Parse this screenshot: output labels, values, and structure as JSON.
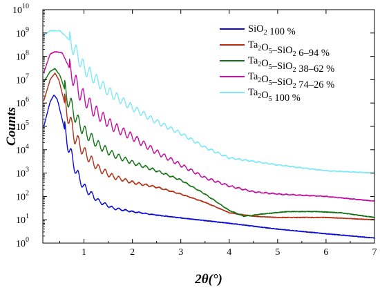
{
  "chart_data": {
    "type": "line",
    "xlabel": "2θ(°)",
    "ylabel": "Counts",
    "xlim": [
      0.15,
      7
    ],
    "ylim_log10": [
      0,
      10
    ],
    "y_scale": "log",
    "x_ticks": [
      "1",
      "2",
      "3",
      "4",
      "5",
      "6",
      "7"
    ],
    "y_ticks": [
      {
        "base": "10",
        "exp": "0"
      },
      {
        "base": "10",
        "exp": "1"
      },
      {
        "base": "10",
        "exp": "2"
      },
      {
        "base": "10",
        "exp": "3"
      },
      {
        "base": "10",
        "exp": "4"
      },
      {
        "base": "10",
        "exp": "5"
      },
      {
        "base": "10",
        "exp": "6"
      },
      {
        "base": "10",
        "exp": "7"
      },
      {
        "base": "10",
        "exp": "8"
      },
      {
        "base": "10",
        "exp": "9"
      },
      {
        "base": "10",
        "exp": "10"
      }
    ],
    "legend_position": "top-right",
    "series": [
      {
        "name": "SiO2 100 %",
        "label_parts": [
          {
            "t": "SiO"
          },
          {
            "sub": "2"
          },
          {
            "t": " 100 %"
          }
        ],
        "color": "#0a0ad6",
        "fringe_period": 0.14,
        "fringe_amp": 0.35,
        "fringe_decay": 2.0,
        "fringe_start": 0.6,
        "points": [
          [
            0.17,
            5.0
          ],
          [
            0.3,
            6.05
          ],
          [
            0.38,
            6.35
          ],
          [
            0.45,
            6.15
          ],
          [
            0.55,
            5.3
          ],
          [
            0.7,
            4.0
          ],
          [
            0.85,
            3.0
          ],
          [
            1.0,
            2.4
          ],
          [
            1.3,
            1.8
          ],
          [
            1.6,
            1.5
          ],
          [
            2.0,
            1.35
          ],
          [
            2.5,
            1.2
          ],
          [
            3.0,
            1.08
          ],
          [
            4.0,
            0.85
          ],
          [
            5.0,
            0.6
          ],
          [
            6.0,
            0.4
          ],
          [
            7.0,
            0.22
          ]
        ]
      },
      {
        "name": "Ta2O5–SiO2 6–94 %",
        "label_parts": [
          {
            "t": "Ta"
          },
          {
            "sub": "2"
          },
          {
            "t": "O"
          },
          {
            "sub": "5"
          },
          {
            "t": "–SiO"
          },
          {
            "sub": "2"
          },
          {
            "t": " 6–94 %"
          }
        ],
        "color": "#b32d12",
        "fringe_period": 0.14,
        "fringe_amp": 0.4,
        "fringe_decay": 1.4,
        "fringe_start": 0.6,
        "points": [
          [
            0.17,
            6.1
          ],
          [
            0.3,
            7.0
          ],
          [
            0.4,
            7.28
          ],
          [
            0.48,
            7.0
          ],
          [
            0.6,
            6.0
          ],
          [
            0.8,
            4.6
          ],
          [
            1.0,
            3.9
          ],
          [
            1.3,
            3.2
          ],
          [
            1.6,
            2.85
          ],
          [
            2.0,
            2.6
          ],
          [
            2.5,
            2.4
          ],
          [
            3.0,
            2.1
          ],
          [
            3.5,
            1.75
          ],
          [
            4.0,
            1.3
          ],
          [
            4.5,
            1.15
          ],
          [
            5.0,
            1.1
          ],
          [
            6.0,
            1.1
          ],
          [
            7.0,
            1.0
          ]
        ]
      },
      {
        "name": "Ta2O5–SiO2 38–62 %",
        "label_parts": [
          {
            "t": "Ta"
          },
          {
            "sub": "2"
          },
          {
            "t": "O"
          },
          {
            "sub": "5"
          },
          {
            "t": "–SiO"
          },
          {
            "sub": "2"
          },
          {
            "t": " 38–62 %"
          }
        ],
        "color": "#127312",
        "fringe_period": 0.14,
        "fringe_amp": 0.38,
        "fringe_decay": 1.1,
        "fringe_start": 0.6,
        "points": [
          [
            0.17,
            6.9
          ],
          [
            0.3,
            7.35
          ],
          [
            0.4,
            7.48
          ],
          [
            0.5,
            7.2
          ],
          [
            0.65,
            6.3
          ],
          [
            0.85,
            5.3
          ],
          [
            1.0,
            4.8
          ],
          [
            1.3,
            4.2
          ],
          [
            1.6,
            3.8
          ],
          [
            2.0,
            3.45
          ],
          [
            2.5,
            3.1
          ],
          [
            3.0,
            2.7
          ],
          [
            3.5,
            2.1
          ],
          [
            4.0,
            1.4
          ],
          [
            4.3,
            1.15
          ],
          [
            4.7,
            1.25
          ],
          [
            5.2,
            1.35
          ],
          [
            5.8,
            1.35
          ],
          [
            6.3,
            1.3
          ],
          [
            7.0,
            1.1
          ]
        ]
      },
      {
        "name": "Ta2O5–SiO2 74–26 %",
        "label_parts": [
          {
            "t": "Ta"
          },
          {
            "sub": "2"
          },
          {
            "t": "O"
          },
          {
            "sub": "5"
          },
          {
            "t": "–SiO"
          },
          {
            "sub": "2"
          },
          {
            "t": " 74–26 %"
          }
        ],
        "color": "#c010a0",
        "fringe_period": 0.14,
        "fringe_amp": 0.4,
        "fringe_decay": 0.75,
        "fringe_start": 0.7,
        "points": [
          [
            0.17,
            7.3
          ],
          [
            0.3,
            8.1
          ],
          [
            0.4,
            8.2
          ],
          [
            0.55,
            8.15
          ],
          [
            0.7,
            7.5
          ],
          [
            0.9,
            6.5
          ],
          [
            1.2,
            5.7
          ],
          [
            1.6,
            5.0
          ],
          [
            2.0,
            4.55
          ],
          [
            2.5,
            3.9
          ],
          [
            3.0,
            3.35
          ],
          [
            3.5,
            2.8
          ],
          [
            4.0,
            2.45
          ],
          [
            4.5,
            2.2
          ],
          [
            5.0,
            2.1
          ],
          [
            6.0,
            2.0
          ],
          [
            7.0,
            1.8
          ]
        ]
      },
      {
        "name": "Ta2O5 100 %",
        "label_parts": [
          {
            "t": "Ta"
          },
          {
            "sub": "2"
          },
          {
            "t": "O"
          },
          {
            "sub": "5"
          },
          {
            "t": " 100 %"
          }
        ],
        "color": "#7fe8f8",
        "fringe_period": 0.14,
        "fringe_amp": 0.35,
        "fringe_decay": 0.7,
        "fringe_start": 0.7,
        "points": [
          [
            0.17,
            8.9
          ],
          [
            0.3,
            9.1
          ],
          [
            0.5,
            9.1
          ],
          [
            0.7,
            8.7
          ],
          [
            1.0,
            7.5
          ],
          [
            1.5,
            6.5
          ],
          [
            2.0,
            5.8
          ],
          [
            2.5,
            5.2
          ],
          [
            3.0,
            4.7
          ],
          [
            3.5,
            4.1
          ],
          [
            4.0,
            3.65
          ],
          [
            4.5,
            3.5
          ],
          [
            5.0,
            3.35
          ],
          [
            6.0,
            3.1
          ],
          [
            7.0,
            3.0
          ]
        ]
      }
    ]
  }
}
